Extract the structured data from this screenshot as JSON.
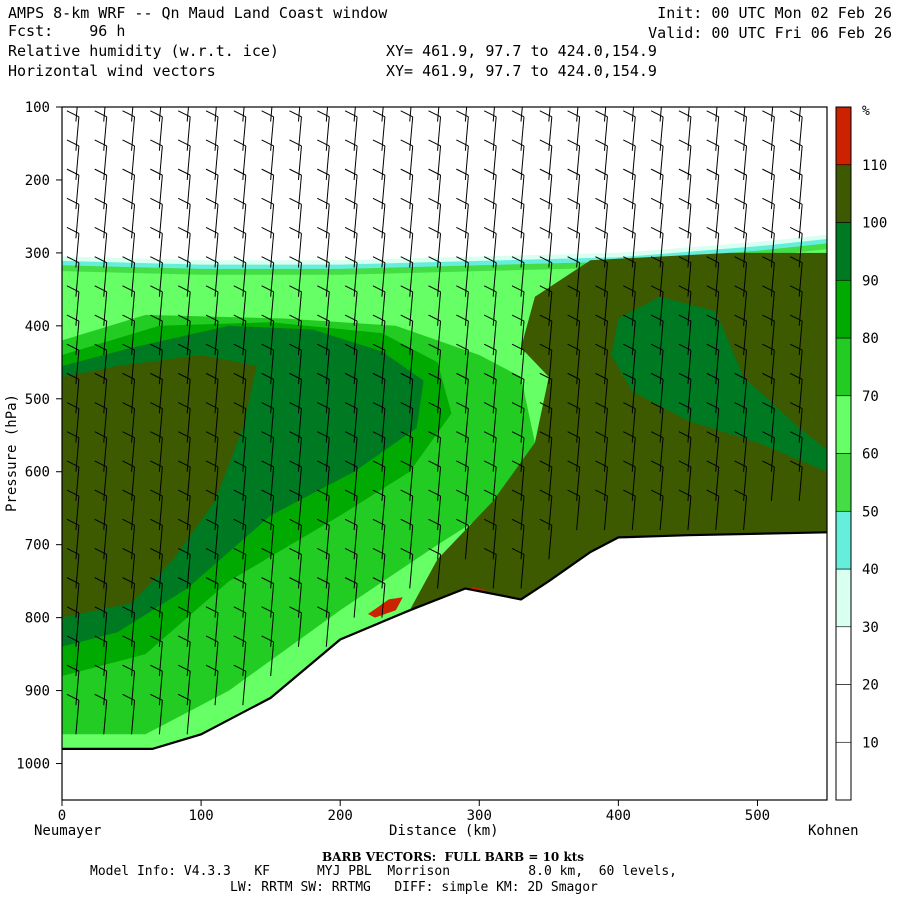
{
  "header": {
    "title": "AMPS 8-km WRF -- Qn Maud Land Coast window",
    "fcst": "Fcst:    96 h",
    "init": "Init: 00 UTC Mon 02 Feb 26",
    "valid": "Valid: 00 UTC Fri 06 Feb 26",
    "field1": "Relative humidity (w.r.t. ice)",
    "field2": "Horizontal wind vectors",
    "xy1": "XY= 461.9, 97.7 to 424.0,154.9",
    "xy2": "XY= 461.9, 97.7 to 424.0,154.9"
  },
  "chart_data": {
    "type": "heatmap",
    "title": "Relative humidity (w.r.t. ice) cross-section with wind barbs",
    "xlabel": "Distance (km)",
    "ylabel": "Pressure (hPa)",
    "xlim": [
      0,
      550
    ],
    "ylim": [
      1050,
      100
    ],
    "x_ticks": [
      0,
      100,
      200,
      300,
      400,
      500
    ],
    "y_ticks": [
      100,
      200,
      300,
      400,
      500,
      600,
      700,
      800,
      900,
      1000
    ],
    "x_left_label": "Neumayer",
    "x_right_label": "Kohnen",
    "colorbar": {
      "unit": "%",
      "levels": [
        10,
        20,
        30,
        40,
        50,
        60,
        70,
        80,
        90,
        100,
        110
      ],
      "colors": [
        "#ffffff",
        "#ffffff",
        "#ffffff",
        "#d8fff0",
        "#66eedd",
        "#44dd44",
        "#66ff66",
        "#22cc22",
        "#00aa00",
        "#007a22",
        "#3e5a00",
        "#cc2200"
      ]
    },
    "terrain_hpa": [
      [
        0,
        980
      ],
      [
        65,
        980
      ],
      [
        100,
        960
      ],
      [
        150,
        910
      ],
      [
        200,
        830
      ],
      [
        250,
        790
      ],
      [
        290,
        760
      ],
      [
        330,
        775
      ],
      [
        350,
        750
      ],
      [
        380,
        710
      ],
      [
        400,
        690
      ],
      [
        450,
        687
      ],
      [
        550,
        683
      ]
    ],
    "moist_top_hpa": [
      [
        0,
        305
      ],
      [
        100,
        310
      ],
      [
        200,
        310
      ],
      [
        300,
        305
      ],
      [
        400,
        300
      ],
      [
        500,
        285
      ],
      [
        550,
        275
      ]
    ],
    "barb_columns_km": [
      10,
      30,
      50,
      70,
      90,
      110,
      130,
      150,
      170,
      190,
      210,
      230,
      250,
      270,
      290,
      310,
      330,
      350,
      370,
      390,
      410,
      430,
      450,
      470,
      490,
      510,
      530
    ],
    "barb_levels_hpa": [
      120,
      160,
      200,
      240,
      280,
      320,
      360,
      400,
      440,
      480,
      520,
      560,
      600,
      640,
      680,
      720,
      760,
      800,
      840,
      880,
      920,
      960
    ]
  },
  "footer": {
    "barb_title": "BARB VECTORS:  FULL BARB = 10 kts",
    "model_info": "Model Info: V4.3.3   KF      MYJ PBL  Morrison          8.0 km,  60 levels,",
    "model_info2": "LW: RRTM SW: RRTMG   DIFF: simple KM: 2D Smagor"
  }
}
